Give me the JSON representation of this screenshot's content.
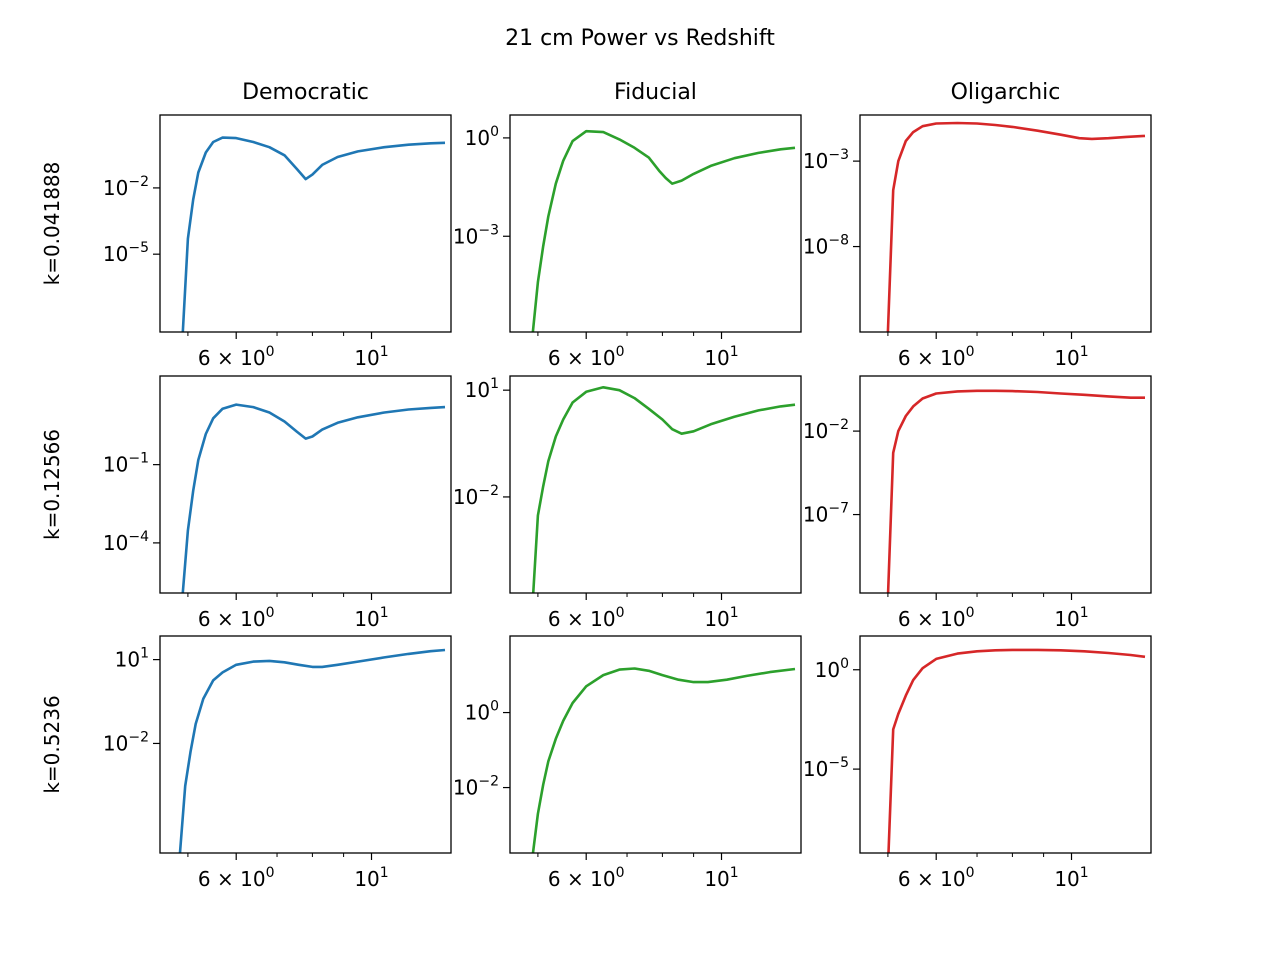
{
  "figure": {
    "suptitle": "21 cm Power vs Redshift",
    "column_titles": [
      "Democratic",
      "Fiducial",
      "Oligarchic"
    ],
    "row_labels": [
      "k=0.041888",
      "k=0.12566",
      "k=0.5236"
    ]
  },
  "chart_data": [
    {
      "type": "line",
      "column": "Democratic",
      "row": "k=0.041888",
      "x_scale": "log",
      "y_scale": "log",
      "xlim": [
        4.5,
        13.5
      ],
      "ylim": [
        3e-09,
        20
      ],
      "x_ticks": [
        {
          "value": 6,
          "label": "6 × 10",
          "exp": "0"
        },
        {
          "value": 10,
          "label": "10",
          "exp": "1"
        }
      ],
      "y_ticks": [
        {
          "value": 0.01,
          "label": "10",
          "exp": "−2"
        },
        {
          "value": 1e-05,
          "label": "10",
          "exp": "−5"
        }
      ],
      "series": [
        {
          "color": "#1f77b4",
          "x": [
            4.9,
            5.0,
            5.1,
            5.2,
            5.35,
            5.5,
            5.7,
            6.0,
            6.4,
            6.8,
            7.2,
            7.55,
            7.8,
            8.0,
            8.3,
            8.8,
            9.5,
            10.5,
            11.5,
            12.5,
            13.2
          ],
          "y": [
            2e-09,
            5e-05,
            0.003,
            0.05,
            0.4,
            1.2,
            1.9,
            1.8,
            1.2,
            0.7,
            0.3,
            0.07,
            0.025,
            0.04,
            0.11,
            0.25,
            0.45,
            0.7,
            0.9,
            1.05,
            1.1
          ]
        }
      ]
    },
    {
      "type": "line",
      "column": "Fiducial",
      "row": "k=0.041888",
      "x_scale": "log",
      "y_scale": "log",
      "xlim": [
        4.5,
        13.5
      ],
      "ylim": [
        1.2e-06,
        5
      ],
      "x_ticks": [
        {
          "value": 6,
          "label": "6 × 10",
          "exp": "0"
        },
        {
          "value": 10,
          "label": "10",
          "exp": "1"
        }
      ],
      "y_ticks": [
        {
          "value": 1,
          "label": "10",
          "exp": "0"
        },
        {
          "value": 0.001,
          "label": "10",
          "exp": "−3"
        }
      ],
      "series": [
        {
          "color": "#2ca02c",
          "x": [
            4.9,
            5.0,
            5.1,
            5.2,
            5.35,
            5.5,
            5.7,
            6.0,
            6.4,
            6.8,
            7.2,
            7.6,
            7.9,
            8.1,
            8.3,
            8.6,
            9.0,
            9.6,
            10.5,
            11.5,
            12.5,
            13.2
          ],
          "y": [
            1e-06,
            4e-05,
            0.0005,
            0.004,
            0.04,
            0.2,
            0.8,
            1.6,
            1.5,
            0.9,
            0.5,
            0.25,
            0.1,
            0.06,
            0.04,
            0.05,
            0.08,
            0.14,
            0.24,
            0.35,
            0.45,
            0.5
          ]
        }
      ]
    },
    {
      "type": "line",
      "column": "Oligarchic",
      "row": "k=0.041888",
      "x_scale": "log",
      "y_scale": "log",
      "xlim": [
        4.5,
        13.5
      ],
      "ylim": [
        1e-13,
        0.5
      ],
      "x_ticks": [
        {
          "value": 6,
          "label": "6 × 10",
          "exp": "0"
        },
        {
          "value": 10,
          "label": "10",
          "exp": "1"
        }
      ],
      "y_ticks": [
        {
          "value": 0.001,
          "label": "10",
          "exp": "−3"
        },
        {
          "value": 1e-08,
          "label": "10",
          "exp": "−8"
        }
      ],
      "series": [
        {
          "color": "#d62728",
          "x": [
            5.0,
            5.1,
            5.2,
            5.35,
            5.5,
            5.7,
            6.0,
            6.5,
            7.0,
            7.5,
            8.0,
            8.8,
            9.6,
            10.3,
            10.8,
            11.5,
            12.3,
            13.2
          ],
          "y": [
            1e-13,
            2e-05,
            0.001,
            0.015,
            0.05,
            0.11,
            0.16,
            0.17,
            0.16,
            0.13,
            0.1,
            0.06,
            0.035,
            0.022,
            0.02,
            0.022,
            0.026,
            0.03
          ]
        }
      ]
    },
    {
      "type": "line",
      "column": "Democratic",
      "row": "k=0.12566",
      "x_scale": "log",
      "y_scale": "log",
      "xlim": [
        4.5,
        13.5
      ],
      "ylim": [
        1.2e-06,
        250
      ],
      "x_ticks": [
        {
          "value": 6,
          "label": "6 × 10",
          "exp": "0"
        },
        {
          "value": 10,
          "label": "10",
          "exp": "1"
        }
      ],
      "y_ticks": [
        {
          "value": 0.1,
          "label": "10",
          "exp": "−1"
        },
        {
          "value": 0.0001,
          "label": "10",
          "exp": "−4"
        }
      ],
      "series": [
        {
          "color": "#1f77b4",
          "x": [
            4.9,
            5.0,
            5.1,
            5.2,
            5.35,
            5.5,
            5.7,
            6.0,
            6.4,
            6.8,
            7.2,
            7.55,
            7.8,
            8.0,
            8.3,
            8.8,
            9.5,
            10.5,
            11.5,
            12.5,
            13.2
          ],
          "y": [
            1e-06,
            0.0003,
            0.01,
            0.15,
            1.5,
            6,
            14,
            20,
            16,
            10,
            4.5,
            1.8,
            1.0,
            1.2,
            2.2,
            4,
            6.5,
            10,
            13,
            15,
            16
          ]
        }
      ]
    },
    {
      "type": "line",
      "column": "Fiducial",
      "row": "k=0.12566",
      "x_scale": "log",
      "y_scale": "log",
      "xlim": [
        4.5,
        13.5
      ],
      "ylim": [
        2e-05,
        25
      ],
      "x_ticks": [
        {
          "value": 6,
          "label": "6 × 10",
          "exp": "0"
        },
        {
          "value": 10,
          "label": "10",
          "exp": "1"
        }
      ],
      "y_ticks": [
        {
          "value": 10,
          "label": "10",
          "exp": "1"
        },
        {
          "value": 0.01,
          "label": "10",
          "exp": "−2"
        }
      ],
      "series": [
        {
          "color": "#2ca02c",
          "x": [
            4.9,
            5.0,
            5.1,
            5.2,
            5.35,
            5.5,
            5.7,
            6.0,
            6.4,
            6.8,
            7.2,
            7.6,
            8.0,
            8.3,
            8.6,
            9.0,
            9.6,
            10.5,
            11.5,
            12.5,
            13.2
          ],
          "y": [
            1e-05,
            0.003,
            0.02,
            0.1,
            0.5,
            1.5,
            4.5,
            9,
            12,
            10,
            6,
            3,
            1.5,
            0.8,
            0.6,
            0.7,
            1.1,
            1.8,
            2.7,
            3.5,
            3.9
          ]
        }
      ]
    },
    {
      "type": "line",
      "column": "Oligarchic",
      "row": "k=0.12566",
      "x_scale": "log",
      "y_scale": "log",
      "xlim": [
        4.5,
        13.5
      ],
      "ylim": [
        2e-12,
        20
      ],
      "x_ticks": [
        {
          "value": 6,
          "label": "6 × 10",
          "exp": "0"
        },
        {
          "value": 10,
          "label": "10",
          "exp": "1"
        }
      ],
      "y_ticks": [
        {
          "value": 0.01,
          "label": "10",
          "exp": "−2"
        },
        {
          "value": 1e-07,
          "label": "10",
          "exp": "−7"
        }
      ],
      "series": [
        {
          "color": "#d62728",
          "x": [
            5.0,
            5.1,
            5.2,
            5.35,
            5.5,
            5.7,
            6.0,
            6.5,
            7.0,
            7.5,
            8.0,
            8.8,
            9.6,
            10.5,
            11.5,
            12.5,
            13.2
          ],
          "y": [
            1e-12,
            0.0005,
            0.01,
            0.08,
            0.3,
            0.9,
            1.8,
            2.4,
            2.6,
            2.6,
            2.5,
            2.2,
            1.8,
            1.5,
            1.2,
            1.0,
            1.0
          ]
        }
      ]
    },
    {
      "type": "line",
      "column": "Democratic",
      "row": "k=0.5236",
      "x_scale": "log",
      "y_scale": "log",
      "xlim": [
        4.5,
        13.5
      ],
      "ylim": [
        1.2e-06,
        70
      ],
      "x_ticks": [
        {
          "value": 6,
          "label": "6 × 10",
          "exp": "0"
        },
        {
          "value": 10,
          "label": "10",
          "exp": "1"
        }
      ],
      "y_ticks": [
        {
          "value": 10,
          "label": "10",
          "exp": "1"
        },
        {
          "value": 0.01,
          "label": "10",
          "exp": "−2"
        }
      ],
      "series": [
        {
          "color": "#1f77b4",
          "x": [
            4.85,
            4.95,
            5.05,
            5.15,
            5.3,
            5.5,
            5.7,
            6.0,
            6.4,
            6.8,
            7.2,
            7.6,
            8.0,
            8.3,
            8.8,
            9.5,
            10.5,
            11.5,
            12.5,
            13.2
          ],
          "y": [
            1e-06,
            0.0003,
            0.005,
            0.05,
            0.4,
            1.8,
            3.5,
            6.5,
            8.5,
            9,
            8,
            6.5,
            5.5,
            5.5,
            6.5,
            8.5,
            12,
            16,
            20,
            22
          ]
        }
      ]
    },
    {
      "type": "line",
      "column": "Fiducial",
      "row": "k=0.5236",
      "x_scale": "log",
      "y_scale": "log",
      "xlim": [
        4.5,
        13.5
      ],
      "ylim": [
        0.00018,
        110
      ],
      "x_ticks": [
        {
          "value": 6,
          "label": "6 × 10",
          "exp": "0"
        },
        {
          "value": 10,
          "label": "10",
          "exp": "1"
        }
      ],
      "y_ticks": [
        {
          "value": 1,
          "label": "10",
          "exp": "0"
        },
        {
          "value": 0.01,
          "label": "10",
          "exp": "−2"
        }
      ],
      "series": [
        {
          "color": "#2ca02c",
          "x": [
            4.9,
            5.0,
            5.1,
            5.2,
            5.35,
            5.5,
            5.7,
            6.0,
            6.4,
            6.8,
            7.2,
            7.6,
            8.0,
            8.5,
            9.0,
            9.5,
            10.2,
            11.0,
            12.0,
            13.2
          ],
          "y": [
            0.00015,
            0.002,
            0.012,
            0.05,
            0.2,
            0.6,
            1.8,
            5,
            10,
            14,
            15,
            13,
            10,
            7.5,
            6.5,
            6.5,
            7.5,
            9.5,
            12,
            14.5
          ]
        }
      ]
    },
    {
      "type": "line",
      "column": "Oligarchic",
      "row": "k=0.5236",
      "x_scale": "log",
      "y_scale": "log",
      "xlim": [
        4.5,
        13.5
      ],
      "ylim": [
        6e-10,
        50
      ],
      "x_ticks": [
        {
          "value": 6,
          "label": "6 × 10",
          "exp": "0"
        },
        {
          "value": 10,
          "label": "10",
          "exp": "1"
        }
      ],
      "y_ticks": [
        {
          "value": 1,
          "label": "10",
          "exp": "0"
        },
        {
          "value": 1e-05,
          "label": "10",
          "exp": "−5"
        }
      ],
      "series": [
        {
          "color": "#d62728",
          "x": [
            5.0,
            5.1,
            5.2,
            5.35,
            5.5,
            5.7,
            6.0,
            6.5,
            7.0,
            7.5,
            8.0,
            8.8,
            9.6,
            10.5,
            11.5,
            12.5,
            13.2
          ],
          "y": [
            1e-10,
            0.001,
            0.006,
            0.05,
            0.3,
            1.2,
            3.5,
            6.5,
            8.5,
            9.5,
            10,
            10,
            9.5,
            8.5,
            7,
            5.5,
            4.5
          ]
        }
      ]
    }
  ]
}
